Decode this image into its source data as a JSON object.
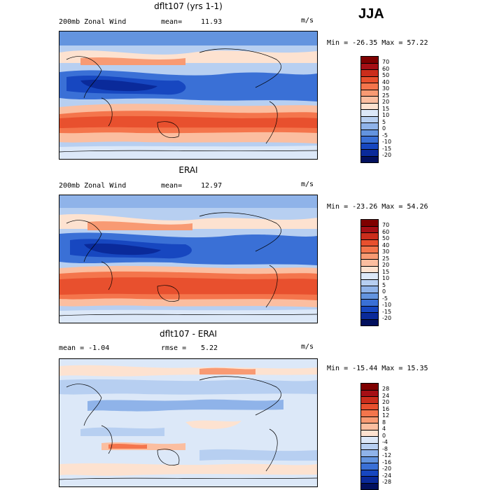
{
  "season": "JJA",
  "panels": [
    {
      "title": "dflt107 (yrs 1-1)",
      "left_label": "200mb Zonal Wind",
      "stat_label": "mean=",
      "stat_value": "11.93",
      "units": "m/s",
      "minmax": "Min = -26.35 Max =  57.22",
      "colorbar_labels": [
        "70",
        "60",
        "50",
        "40",
        "30",
        "25",
        "20",
        "15",
        "10",
        "5",
        "0",
        "-5",
        "-10",
        "-15",
        "-20"
      ]
    },
    {
      "title": "ERAI",
      "left_label": "200mb Zonal Wind",
      "stat_label": "mean=",
      "stat_value": "12.97",
      "units": "m/s",
      "minmax": "Min = -23.26 Max =  54.26",
      "colorbar_labels": [
        "70",
        "60",
        "50",
        "40",
        "30",
        "25",
        "20",
        "15",
        "10",
        "5",
        "0",
        "-5",
        "-10",
        "-15",
        "-20"
      ]
    },
    {
      "title": "dflt107 - ERAI",
      "left_label": "mean =  -1.04",
      "stat_label": "rmse =",
      "stat_value": "5.22",
      "units": "m/s",
      "minmax": "Min = -15.44 Max =  15.35",
      "colorbar_labels": [
        "28",
        "24",
        "20",
        "16",
        "12",
        "8",
        "4",
        "0",
        "-4",
        "-8",
        "-12",
        "-16",
        "-20",
        "-24",
        "-28"
      ]
    }
  ],
  "colors": {
    "colorbar": [
      "#7f0000",
      "#a50f15",
      "#cb2d1c",
      "#e8502e",
      "#f4754c",
      "#f89a73",
      "#fbbea0",
      "#fde2d0",
      "#dce8f8",
      "#b7cff1",
      "#8fb3e9",
      "#6394df",
      "#3a70d6",
      "#1747c0",
      "#0a2a9a",
      "#02105e"
    ],
    "diff_colorbar": [
      "#7f0000",
      "#a50f15",
      "#cb2d1c",
      "#e8502e",
      "#f4754c",
      "#f89a73",
      "#fbbea0",
      "#fde2d0",
      "#dce8f8",
      "#b7cff1",
      "#8fb3e9",
      "#6394df",
      "#3a70d6",
      "#1747c0",
      "#0a2a9a",
      "#02105e"
    ]
  }
}
